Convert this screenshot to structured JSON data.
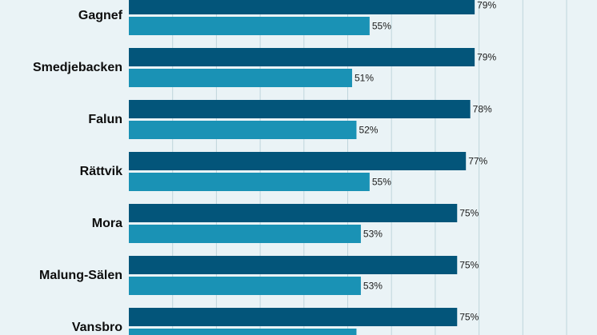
{
  "chart_data": {
    "type": "bar",
    "orientation": "horizontal",
    "categories": [
      "Gagnef",
      "Smedjebacken",
      "Falun",
      "Rättvik",
      "Mora",
      "Malung-Sälen",
      "Vansbro"
    ],
    "series": [
      {
        "color": "#03557a",
        "values": [
          79,
          79,
          78,
          77,
          75,
          75,
          75
        ],
        "labels": [
          "79%",
          "79%",
          "78%",
          "77%",
          "75%",
          "75%",
          "75%"
        ]
      },
      {
        "color": "#1a92b5",
        "values": [
          55,
          51,
          52,
          55,
          53,
          53,
          52
        ],
        "labels": [
          "55%",
          "51%",
          "52%",
          "55%",
          "53%",
          "53%",
          ""
        ]
      }
    ],
    "xlim": [
      0,
      105
    ],
    "grid": true,
    "legend": "none"
  }
}
